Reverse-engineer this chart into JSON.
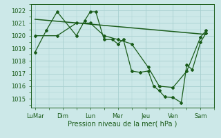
{
  "bg_color": "#cce8e8",
  "grid_color": "#a8d0d0",
  "line_color": "#1a5c1a",
  "xlabel": "Pression niveau de la mer( hPa )",
  "ylim": [
    1014.3,
    1022.5
  ],
  "yticks": [
    1015,
    1016,
    1017,
    1018,
    1019,
    1020,
    1021,
    1022
  ],
  "xlim": [
    -0.15,
    6.5
  ],
  "xtick_labels": [
    "LuMar",
    "Dim",
    "Lun",
    "Mer",
    "Jeu",
    "Ven",
    "Sam"
  ],
  "xtick_positions": [
    0,
    1,
    2,
    3,
    4,
    5,
    6
  ],
  "series_main_x": [
    0.0,
    0.4,
    0.8,
    1.5,
    1.8,
    2.0,
    2.2,
    2.5,
    2.8,
    3.0,
    3.2,
    3.5,
    3.8,
    4.1,
    4.3,
    4.5,
    4.7,
    5.0,
    5.3,
    5.5,
    5.7,
    6.0,
    6.2
  ],
  "series_main_y": [
    1018.7,
    1020.4,
    1021.9,
    1020.0,
    1021.2,
    1021.9,
    1021.9,
    1019.7,
    1019.7,
    1019.35,
    1019.7,
    1017.2,
    1017.1,
    1017.2,
    1016.0,
    1015.65,
    1015.15,
    1015.1,
    1014.7,
    1017.7,
    1017.3,
    1019.5,
    1020.2
  ],
  "series_smooth_x": [
    0.0,
    0.8,
    1.5,
    2.0,
    2.5,
    3.0,
    3.5,
    4.1,
    4.5,
    5.0,
    5.5,
    6.0,
    6.2
  ],
  "series_smooth_y": [
    1020.0,
    1020.0,
    1021.0,
    1021.0,
    1020.0,
    1019.7,
    1019.35,
    1017.5,
    1016.0,
    1015.9,
    1017.2,
    1019.9,
    1020.4
  ],
  "trend_x": [
    0.0,
    6.2
  ],
  "trend_y": [
    1021.3,
    1020.1
  ]
}
